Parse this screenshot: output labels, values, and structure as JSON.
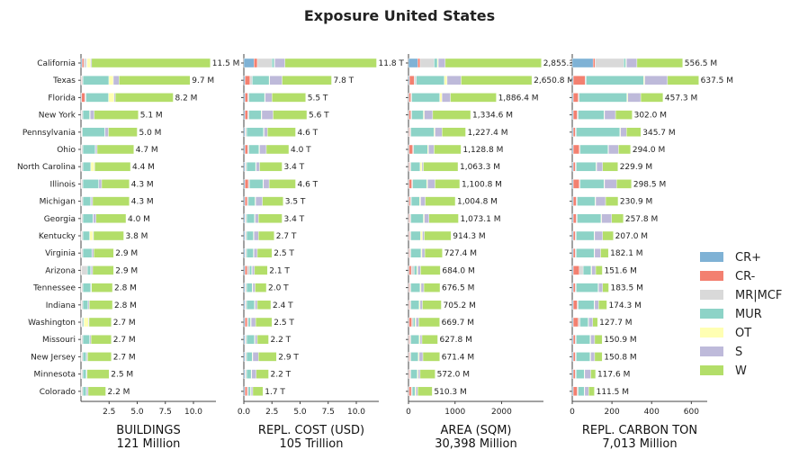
{
  "chart_data": {
    "type": "bar",
    "title": "Exposure United States",
    "categories": [
      "California",
      "Texas",
      "Florida",
      "New York",
      "Pennsylvania",
      "Ohio",
      "North Carolina",
      "Illinois",
      "Michigan",
      "Georgia",
      "Kentucky",
      "Virginia",
      "Arizona",
      "Tennessee",
      "Indiana",
      "Washington",
      "Missouri",
      "New Jersey",
      "Minnesota",
      "Colorado"
    ],
    "legend": {
      "placement": "right",
      "entries": [
        {
          "name": "CR+",
          "color": "#7fb2d5"
        },
        {
          "name": "CR-",
          "color": "#f38070"
        },
        {
          "name": "MR|MCF",
          "color": "#d9d9d9"
        },
        {
          "name": "MUR",
          "color": "#8dd3c7"
        },
        {
          "name": "OT",
          "color": "#ffffb3"
        },
        {
          "name": "S",
          "color": "#bebada"
        },
        {
          "name": "W",
          "color": "#b3de69"
        }
      ]
    },
    "panels": [
      {
        "xlabel": "BUILDINGS",
        "total": "121 Million",
        "xlim": [
          0,
          12
        ],
        "ticks": [
          2.5,
          5.0,
          7.5,
          10.0
        ],
        "tick_labels": [
          "2.5",
          "5.0",
          "7.5",
          "10.0"
        ],
        "labels": [
          "11.5 M",
          "9.7 M",
          "8.2 M",
          "5.1 M",
          "5.0 M",
          "4.7 M",
          "4.4 M",
          "4.3 M",
          "4.3 M",
          "4.0 M",
          "3.8 M",
          "2.9 M",
          "2.9 M",
          "2.8 M",
          "2.8 M",
          "2.7 M",
          "2.7 M",
          "2.7 M",
          "2.5 M",
          "2.2 M"
        ],
        "values": [
          [
            0.1,
            0.15,
            0.25,
            0.05,
            0.3,
            0.1,
            10.55
          ],
          [
            0.03,
            0.05,
            0.1,
            2.3,
            0.4,
            0.5,
            6.32
          ],
          [
            0.05,
            0.3,
            0.1,
            2.0,
            0.5,
            0.1,
            5.15
          ],
          [
            0.02,
            0.05,
            0.1,
            0.6,
            0.05,
            0.35,
            3.93
          ],
          [
            0.02,
            0.05,
            0.05,
            2.0,
            0.02,
            0.3,
            2.56
          ],
          [
            0.02,
            0.05,
            0.1,
            1.1,
            0.02,
            0.15,
            3.26
          ],
          [
            0.02,
            0.05,
            0.1,
            0.7,
            0.3,
            0.05,
            3.18
          ],
          [
            0.02,
            0.05,
            0.1,
            1.4,
            0.02,
            0.25,
            2.46
          ],
          [
            0.02,
            0.05,
            0.1,
            0.7,
            0.02,
            0.15,
            3.26
          ],
          [
            0.02,
            0.05,
            0.1,
            0.9,
            0.02,
            0.25,
            2.66
          ],
          [
            0.02,
            0.05,
            0.1,
            0.6,
            0.3,
            0.05,
            2.68
          ],
          [
            0.02,
            0.05,
            0.1,
            0.8,
            0.02,
            0.15,
            1.76
          ],
          [
            0.02,
            0.05,
            0.5,
            0.3,
            0.02,
            0.15,
            1.86
          ],
          [
            0.02,
            0.05,
            0.1,
            0.7,
            0.02,
            0.05,
            1.86
          ],
          [
            0.02,
            0.05,
            0.1,
            0.45,
            0.02,
            0.1,
            2.06
          ],
          [
            0.02,
            0.05,
            0.1,
            0.1,
            0.4,
            0.05,
            1.98
          ],
          [
            0.02,
            0.05,
            0.1,
            0.6,
            0.02,
            0.1,
            1.81
          ],
          [
            0.02,
            0.05,
            0.1,
            0.3,
            0.02,
            0.1,
            2.11
          ],
          [
            0.02,
            0.05,
            0.1,
            0.3,
            0.02,
            0.05,
            1.96
          ],
          [
            0.02,
            0.05,
            0.1,
            0.3,
            0.02,
            0.15,
            1.56
          ]
        ]
      },
      {
        "xlabel": "REPL. COST (USD)",
        "total": "105 Trillion",
        "xlim": [
          0,
          12
        ],
        "ticks": [
          0,
          2.5,
          5.0,
          7.5,
          10.0
        ],
        "tick_labels": [
          "0.0",
          "2.5",
          "5.0",
          "7.5",
          "10.0"
        ],
        "labels": [
          "11.8 T",
          "7.8 T",
          "5.5 T",
          "5.6 T",
          "4.6 T",
          "4.0 T",
          "3.4 T",
          "4.6 T",
          "3.5 T",
          "3.4 T",
          "2.7 T",
          "2.5 T",
          "2.1 T",
          "2.0 T",
          "2.4 T",
          "2.5 T",
          "2.2 T",
          "2.9 T",
          "2.2 T",
          "1.7 T"
        ],
        "values": [
          [
            0.9,
            0.3,
            1.3,
            0.2,
            0.05,
            0.9,
            8.15
          ],
          [
            0.1,
            0.45,
            0.2,
            1.5,
            0.05,
            1.1,
            4.4
          ],
          [
            0.1,
            0.25,
            0.1,
            1.4,
            0.05,
            0.6,
            3.0
          ],
          [
            0.1,
            0.25,
            0.1,
            1.1,
            0.05,
            1.0,
            3.0
          ],
          [
            0.1,
            0.05,
            0.1,
            1.5,
            0.05,
            0.3,
            2.5
          ],
          [
            0.1,
            0.25,
            0.1,
            0.9,
            0.05,
            0.6,
            2.0
          ],
          [
            0.1,
            0.05,
            0.1,
            0.8,
            0.05,
            0.3,
            2.0
          ],
          [
            0.1,
            0.3,
            0.1,
            1.2,
            0.05,
            0.5,
            2.35
          ],
          [
            0.1,
            0.2,
            0.1,
            0.6,
            0.05,
            0.6,
            1.85
          ],
          [
            0.1,
            0.05,
            0.1,
            0.7,
            0.05,
            0.3,
            2.1
          ],
          [
            0.1,
            0.05,
            0.1,
            0.6,
            0.05,
            0.4,
            1.4
          ],
          [
            0.1,
            0.05,
            0.1,
            0.6,
            0.05,
            0.3,
            1.3
          ],
          [
            0.1,
            0.2,
            0.2,
            0.2,
            0.05,
            0.2,
            1.15
          ],
          [
            0.1,
            0.05,
            0.1,
            0.5,
            0.05,
            0.2,
            1.0
          ],
          [
            0.1,
            0.05,
            0.1,
            0.7,
            0.05,
            0.2,
            1.2
          ],
          [
            0.1,
            0.2,
            0.1,
            0.2,
            0.05,
            0.4,
            1.45
          ],
          [
            0.1,
            0.05,
            0.1,
            0.7,
            0.05,
            0.2,
            1.0
          ],
          [
            0.1,
            0.05,
            0.1,
            0.5,
            0.05,
            0.5,
            1.6
          ],
          [
            0.1,
            0.05,
            0.1,
            0.4,
            0.05,
            0.4,
            1.1
          ],
          [
            0.1,
            0.2,
            0.1,
            0.2,
            0.05,
            0.15,
            0.9
          ]
        ]
      },
      {
        "xlabel": "AREA (SQM)",
        "total": "30,398 Million",
        "xlim": [
          0,
          2900
        ],
        "ticks": [
          0,
          1000,
          2000
        ],
        "tick_labels": [
          "0",
          "1000",
          "2000"
        ],
        "labels": [
          "2,855.3",
          "2,650.8 M",
          "1,886.4 M",
          "1,334.6 M",
          "1,227.4 M",
          "1,128.8 M",
          "1,063.3 M",
          "1,100.8 M",
          "1,004.8 M",
          "1,073.1 M",
          "914.3 M",
          "727.4 M",
          "684.0 M",
          "676.5 M",
          "705.2 M",
          "669.7 M",
          "627.8 M",
          "671.4 M",
          "572.0 M",
          "510.3 M"
        ],
        "values": [
          [
            200,
            50,
            300,
            70,
            20,
            150,
            2065.3
          ],
          [
            20,
            100,
            50,
            600,
            60,
            300,
            1520.8
          ],
          [
            10,
            40,
            20,
            600,
            50,
            180,
            986.4
          ],
          [
            10,
            40,
            20,
            250,
            20,
            180,
            814.6
          ],
          [
            10,
            20,
            20,
            500,
            20,
            150,
            507.4
          ],
          [
            10,
            80,
            20,
            300,
            20,
            120,
            578.8
          ],
          [
            10,
            20,
            20,
            200,
            40,
            30,
            743.3
          ],
          [
            10,
            60,
            20,
            300,
            20,
            160,
            530.8
          ],
          [
            10,
            30,
            20,
            180,
            20,
            100,
            644.8
          ],
          [
            10,
            20,
            20,
            270,
            20,
            100,
            633.1
          ],
          [
            10,
            20,
            20,
            210,
            40,
            40,
            574.3
          ],
          [
            10,
            20,
            20,
            220,
            20,
            60,
            377.4
          ],
          [
            10,
            50,
            60,
            60,
            20,
            60,
            424.0
          ],
          [
            10,
            20,
            20,
            200,
            20,
            60,
            346.5
          ],
          [
            10,
            20,
            20,
            180,
            20,
            50,
            405.2
          ],
          [
            10,
            60,
            30,
            40,
            20,
            60,
            449.7
          ],
          [
            10,
            20,
            20,
            180,
            20,
            40,
            337.8
          ],
          [
            10,
            20,
            20,
            160,
            20,
            80,
            361.4
          ],
          [
            10,
            20,
            20,
            140,
            20,
            40,
            322.0
          ],
          [
            10,
            50,
            20,
            60,
            20,
            40,
            310.3
          ]
        ]
      },
      {
        "xlabel": "REPL. CARBON TON",
        "total": "7,013 Million",
        "xlim": [
          0,
          680
        ],
        "ticks": [
          0,
          200,
          400,
          600
        ],
        "tick_labels": [
          "0",
          "200",
          "400",
          "600"
        ],
        "labels": [
          "556.5 M",
          "637.5 M",
          "457.3 M",
          "302.0 M",
          "345.7 M",
          "294.0 M",
          "229.9 M",
          "298.5 M",
          "230.9 M",
          "257.8 M",
          "207.0 M",
          "182.1 M",
          "151.6 M",
          "183.5 M",
          "174.3 M",
          "127.7 M",
          "150.9 M",
          "150.8 M",
          "117.6 M",
          "111.5 M"
        ],
        "values": [
          [
            105,
            10,
            145,
            10,
            3,
            53,
            230.5
          ],
          [
            5,
            60,
            5,
            290,
            5,
            115,
            157.5
          ],
          [
            5,
            25,
            5,
            240,
            5,
            65,
            112.3
          ],
          [
            5,
            20,
            5,
            130,
            3,
            55,
            84.0
          ],
          [
            5,
            10,
            5,
            220,
            3,
            30,
            72.7
          ],
          [
            5,
            30,
            5,
            140,
            3,
            50,
            61.0
          ],
          [
            5,
            10,
            5,
            100,
            3,
            30,
            76.9
          ],
          [
            5,
            30,
            5,
            120,
            3,
            60,
            75.5
          ],
          [
            5,
            15,
            5,
            90,
            3,
            50,
            62.9
          ],
          [
            5,
            15,
            5,
            120,
            3,
            50,
            59.8
          ],
          [
            5,
            10,
            5,
            90,
            3,
            40,
            54.0
          ],
          [
            5,
            10,
            5,
            90,
            3,
            30,
            39.1
          ],
          [
            5,
            30,
            20,
            40,
            3,
            20,
            33.6
          ],
          [
            5,
            10,
            5,
            110,
            3,
            20,
            30.5
          ],
          [
            5,
            20,
            5,
            80,
            3,
            20,
            41.3
          ],
          [
            5,
            25,
            10,
            40,
            3,
            20,
            24.7
          ],
          [
            5,
            10,
            5,
            70,
            3,
            20,
            37.9
          ],
          [
            5,
            10,
            5,
            70,
            3,
            20,
            37.9
          ],
          [
            5,
            10,
            5,
            40,
            3,
            30,
            24.6
          ],
          [
            5,
            20,
            5,
            30,
            3,
            20,
            28.5
          ]
        ]
      }
    ]
  }
}
